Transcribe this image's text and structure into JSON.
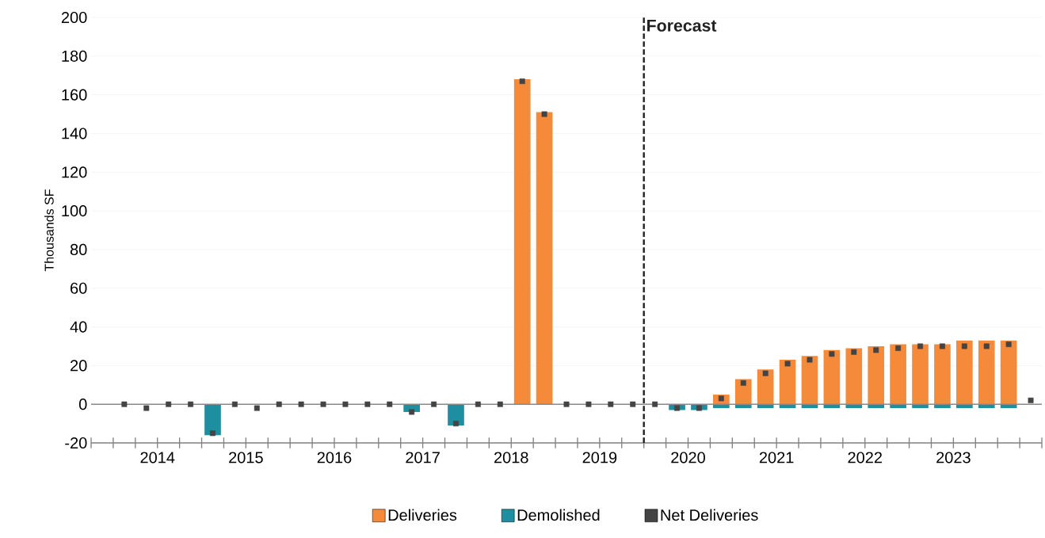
{
  "chart_data": {
    "type": "bar",
    "ylabel": "Thousands SF",
    "xlim": [
      2013.75,
      2024.5
    ],
    "ylim": [
      -20,
      200
    ],
    "yticks": [
      -20,
      0,
      20,
      40,
      60,
      80,
      100,
      120,
      140,
      160,
      180,
      200
    ],
    "xticks": [
      {
        "value": 2013.75,
        "label": null
      },
      {
        "value": 2014,
        "label": null
      },
      {
        "value": 2014.25,
        "label": null
      },
      {
        "value": 2014.5,
        "label": "2014"
      },
      {
        "value": 2014.75,
        "label": null
      },
      {
        "value": 2015,
        "label": null
      },
      {
        "value": 2015.25,
        "label": null
      },
      {
        "value": 2015.5,
        "label": "2015"
      },
      {
        "value": 2015.75,
        "label": null
      },
      {
        "value": 2016,
        "label": null
      },
      {
        "value": 2016.25,
        "label": null
      },
      {
        "value": 2016.5,
        "label": "2016"
      },
      {
        "value": 2016.75,
        "label": null
      },
      {
        "value": 2017,
        "label": null
      },
      {
        "value": 2017.25,
        "label": null
      },
      {
        "value": 2017.5,
        "label": "2017"
      },
      {
        "value": 2017.75,
        "label": null
      },
      {
        "value": 2018,
        "label": null
      },
      {
        "value": 2018.25,
        "label": null
      },
      {
        "value": 2018.5,
        "label": "2018"
      },
      {
        "value": 2018.75,
        "label": null
      },
      {
        "value": 2019,
        "label": null
      },
      {
        "value": 2019.25,
        "label": null
      },
      {
        "value": 2019.5,
        "label": "2019"
      },
      {
        "value": 2019.75,
        "label": null
      },
      {
        "value": 2020,
        "label": null
      },
      {
        "value": 2020.25,
        "label": null
      },
      {
        "value": 2020.5,
        "label": "2020"
      },
      {
        "value": 2020.75,
        "label": null
      },
      {
        "value": 2021,
        "label": null
      },
      {
        "value": 2021.25,
        "label": null
      },
      {
        "value": 2021.5,
        "label": "2021"
      },
      {
        "value": 2021.75,
        "label": null
      },
      {
        "value": 2022,
        "label": null
      },
      {
        "value": 2022.25,
        "label": null
      },
      {
        "value": 2022.5,
        "label": "2022"
      },
      {
        "value": 2022.75,
        "label": null
      },
      {
        "value": 2023,
        "label": null
      },
      {
        "value": 2023.25,
        "label": null
      },
      {
        "value": 2023.5,
        "label": "2023"
      },
      {
        "value": 2023.75,
        "label": null
      },
      {
        "value": 2024,
        "label": null
      },
      {
        "value": 2024.25,
        "label": null
      },
      {
        "value": 2024.5,
        "label": null
      }
    ],
    "x": [
      2014.125,
      2014.375,
      2014.625,
      2014.875,
      2015.125,
      2015.375,
      2015.625,
      2015.875,
      2016.125,
      2016.375,
      2016.625,
      2016.875,
      2017.125,
      2017.375,
      2017.625,
      2017.875,
      2018.125,
      2018.375,
      2018.625,
      2018.875,
      2019.125,
      2019.375,
      2019.625,
      2019.875,
      2020.125,
      2020.375,
      2020.625,
      2020.875,
      2021.125,
      2021.375,
      2021.625,
      2021.875,
      2022.125,
      2022.375,
      2022.625,
      2022.875,
      2023.125,
      2023.375,
      2023.625,
      2023.875,
      2024.125,
      2024.375
    ],
    "series": [
      {
        "name": "Deliveries",
        "color": "#f58a3a",
        "values": [
          0,
          0,
          0,
          0,
          0,
          0,
          0,
          0,
          0,
          0,
          0,
          0,
          0,
          0,
          0,
          0,
          0,
          0,
          168,
          151,
          0,
          0,
          0,
          0,
          0,
          0,
          0,
          5,
          13,
          18,
          23,
          25,
          28,
          29,
          30,
          31,
          31,
          31,
          33,
          33,
          33,
          0
        ]
      },
      {
        "name": "Demolished",
        "color": "#1e8fa0",
        "values": [
          0,
          0,
          0,
          0,
          -16,
          0,
          0,
          0,
          0,
          0,
          0,
          0,
          0,
          -4,
          0,
          -11,
          0,
          0,
          0,
          0,
          0,
          0,
          0,
          0,
          0,
          -3,
          -3,
          -2,
          -2,
          -2,
          -2,
          -2,
          -2,
          -2,
          -2,
          -2,
          -2,
          -2,
          -2,
          -2,
          -2,
          0
        ]
      },
      {
        "name": "Net Deliveries",
        "type": "scatter",
        "color": "#444444",
        "values": [
          0,
          -2,
          0,
          0,
          -15,
          0,
          -2,
          0,
          0,
          0,
          0,
          0,
          0,
          -4,
          0,
          -10,
          0,
          0,
          167,
          150,
          0,
          0,
          0,
          0,
          0,
          -2,
          -2,
          3,
          11,
          16,
          21,
          23,
          26,
          27,
          28,
          29,
          30,
          30,
          30,
          30,
          31,
          2
        ]
      }
    ],
    "ref_lines": [
      {
        "axis": "x",
        "value": 2020,
        "label": "Forecast",
        "color": "#222222",
        "line_style": "dashed"
      },
      {
        "axis": "y",
        "value": 0,
        "color": "#8a8a8a",
        "line_style": "solid"
      }
    ],
    "grid": "y",
    "legend": "bottom",
    "marker": "square"
  }
}
